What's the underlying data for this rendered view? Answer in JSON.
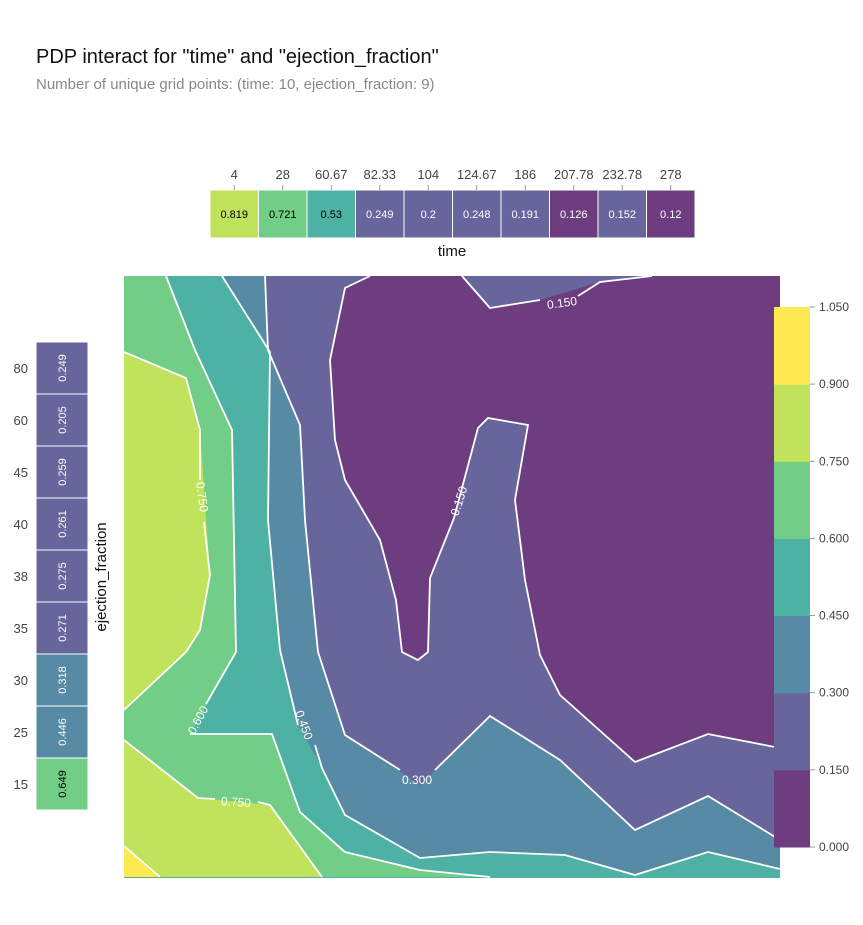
{
  "title": "PDP interact for \"time\" and \"ejection_fraction\"",
  "subtitle": "Number of unique grid points: (time: 10, ejection_fraction: 9)",
  "chart_data": [
    {
      "type": "heatmap",
      "name": "time-pdp-strip",
      "xlabel": "time",
      "categories": [
        "4",
        "28",
        "60.67",
        "82.33",
        "104",
        "124.67",
        "186",
        "207.78",
        "232.78",
        "278"
      ],
      "values": [
        0.819,
        0.721,
        0.53,
        0.249,
        0.2,
        0.248,
        0.191,
        0.126,
        0.152,
        0.12
      ],
      "labels": [
        "0.819",
        "0.721",
        "0.53",
        "0.249",
        "0.2",
        "0.248",
        "0.191",
        "0.126",
        "0.152",
        "0.12"
      ]
    },
    {
      "type": "heatmap",
      "name": "ejection-fraction-pdp-strip",
      "ylabel": "ejection_fraction",
      "categories": [
        "80",
        "60",
        "45",
        "40",
        "38",
        "35",
        "30",
        "25",
        "15"
      ],
      "values": [
        0.249,
        0.205,
        0.259,
        0.261,
        0.275,
        0.271,
        0.318,
        0.446,
        0.649
      ],
      "labels": [
        "0.249",
        "0.205",
        "0.259",
        "0.261",
        "0.275",
        "0.271",
        "0.318",
        "0.446",
        "0.649"
      ]
    },
    {
      "type": "contour",
      "name": "interaction-contour",
      "levels": [
        0.0,
        0.15,
        0.3,
        0.45,
        0.6,
        0.75,
        0.9,
        1.05
      ],
      "contour_labels": [
        "0.150",
        "0.150",
        "0.300",
        "0.450",
        "0.600",
        "0.750",
        "0.750"
      ],
      "colorbar": {
        "range": [
          0.0,
          1.05
        ],
        "ticks": [
          "1.050",
          "0.900",
          "0.750",
          "0.600",
          "0.450",
          "0.300",
          "0.150",
          "0.000"
        ]
      }
    }
  ],
  "palette": {
    "bands": [
      "#6d3d80",
      "#67659b",
      "#578aa4",
      "#4db1a3",
      "#72cd86",
      "#c1e25b",
      "#fde950"
    ],
    "line": "#ffffff",
    "text_dark": "#000000",
    "text_light": "#ffffff",
    "tick_text": "#444444"
  }
}
